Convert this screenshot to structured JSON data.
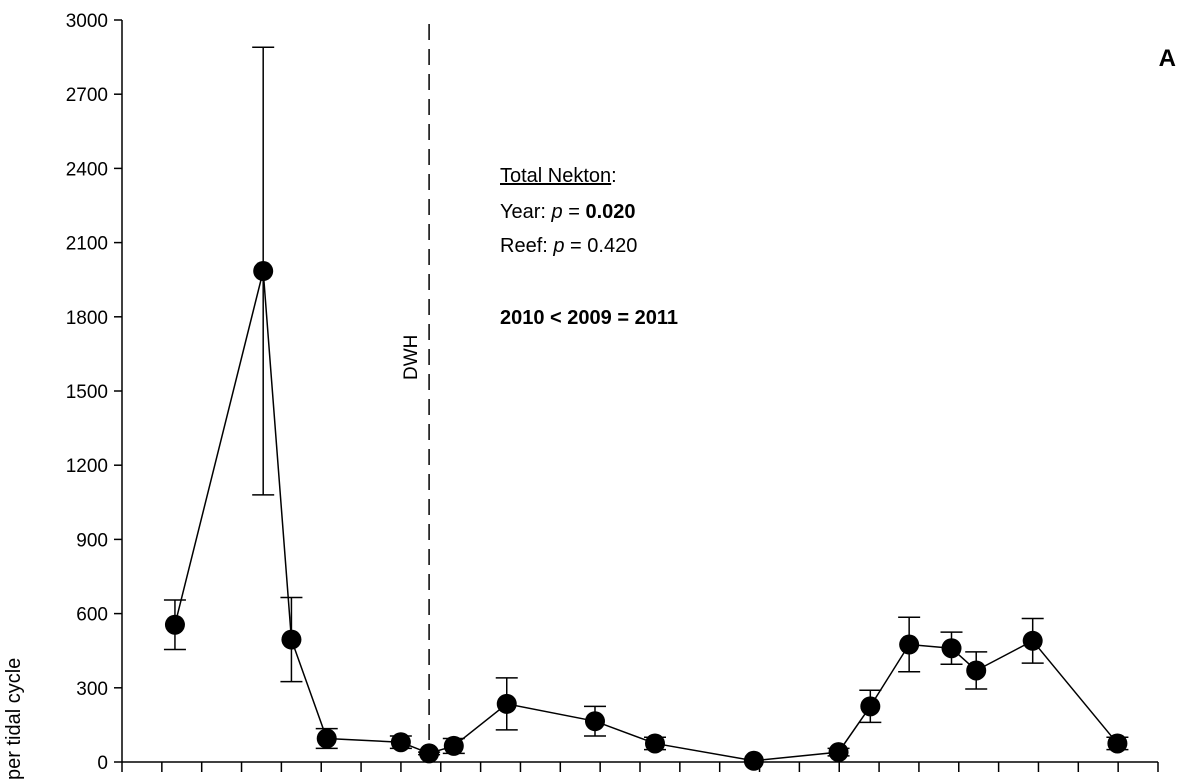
{
  "chart_data": {
    "type": "line",
    "panel_label": "A",
    "ylabel": "per tidal cycle",
    "ylim": [
      0,
      3000
    ],
    "yticks": [
      0,
      300,
      600,
      900,
      1200,
      1500,
      1800,
      2100,
      2400,
      2700,
      3000
    ],
    "xlim": [
      0,
      26
    ],
    "x_tick_count": 26,
    "series": [
      {
        "x": [
          1.5,
          4.0,
          4.8,
          5.8,
          7.9,
          8.7,
          9.4,
          10.9,
          13.4,
          15.1,
          17.9,
          20.3,
          21.2,
          22.3,
          23.5,
          24.2,
          25.8,
          28.2
        ],
        "y": [
          555,
          1985,
          495,
          95,
          80,
          35,
          65,
          235,
          165,
          75,
          5,
          40,
          225,
          475,
          460,
          370,
          490,
          75
        ],
        "err_low": [
          100,
          905,
          170,
          40,
          25,
          5,
          30,
          105,
          60,
          25,
          0,
          15,
          65,
          110,
          65,
          75,
          90,
          25
        ],
        "err_high": [
          100,
          905,
          170,
          40,
          25,
          5,
          30,
          105,
          60,
          25,
          0,
          15,
          65,
          110,
          65,
          75,
          90,
          25
        ]
      }
    ],
    "reference_line": {
      "x": 8.7,
      "label": "DWH",
      "style": "dashed"
    },
    "annotation": {
      "heading": "Total Nekton",
      "heading_suffix": ":",
      "year_prefix": "Year: ",
      "p_symbol": "p",
      "eq": " = ",
      "year_p": "0.020",
      "reef_prefix": "Reef: ",
      "reef_p": "0.420",
      "comparison": "2010 < 2009 = 2011"
    }
  }
}
